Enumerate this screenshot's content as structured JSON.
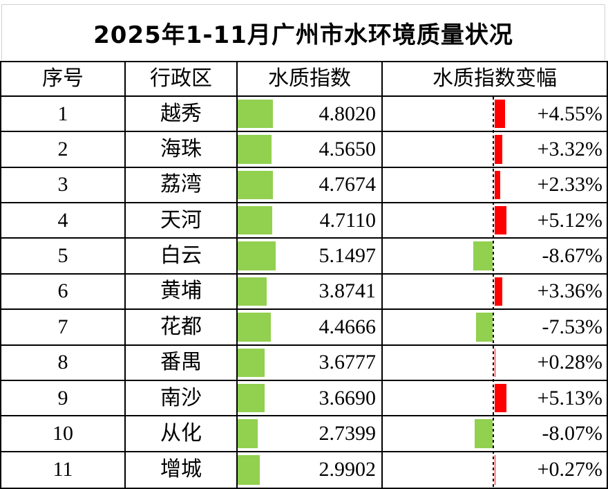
{
  "title": "2025年1-11月广州市水环境质量状况",
  "table": {
    "headers": [
      "序号",
      "行政区",
      "水质指数",
      "水质指数变幅"
    ],
    "rows": [
      {
        "no": "1",
        "district": "越秀",
        "index_label": "4.8020",
        "index_value": 4.802,
        "change_label": "+4.55%",
        "change_value": 4.55
      },
      {
        "no": "2",
        "district": "海珠",
        "index_label": "4.5650",
        "index_value": 4.565,
        "change_label": "+3.32%",
        "change_value": 3.32
      },
      {
        "no": "3",
        "district": "荔湾",
        "index_label": "4.7674",
        "index_value": 4.7674,
        "change_label": "+2.33%",
        "change_value": 2.33
      },
      {
        "no": "4",
        "district": "天河",
        "index_label": "4.7110",
        "index_value": 4.711,
        "change_label": "+5.12%",
        "change_value": 5.12
      },
      {
        "no": "5",
        "district": "白云",
        "index_label": "5.1497",
        "index_value": 5.1497,
        "change_label": "-8.67%",
        "change_value": -8.67
      },
      {
        "no": "6",
        "district": "黄埔",
        "index_label": "3.8741",
        "index_value": 3.8741,
        "change_label": "+3.36%",
        "change_value": 3.36
      },
      {
        "no": "7",
        "district": "花都",
        "index_label": "4.4666",
        "index_value": 4.4666,
        "change_label": "-7.53%",
        "change_value": -7.53
      },
      {
        "no": "8",
        "district": "番禺",
        "index_label": "3.6777",
        "index_value": 3.6777,
        "change_label": "+0.28%",
        "change_value": 0.28
      },
      {
        "no": "9",
        "district": "南沙",
        "index_label": "3.6690",
        "index_value": 3.669,
        "change_label": "+5.13%",
        "change_value": 5.13
      },
      {
        "no": "10",
        "district": "从化",
        "index_label": "2.7399",
        "index_value": 2.7399,
        "change_label": "-8.07%",
        "change_value": -8.07
      },
      {
        "no": "11",
        "district": "增城",
        "index_label": "2.9902",
        "index_value": 2.9902,
        "change_label": "+0.27%",
        "change_value": 0.27
      }
    ]
  },
  "colors": {
    "index_bar": "#92d050",
    "positive_bar": "#ff0000",
    "negative_bar": "#92d050",
    "border": "#000000",
    "title_border": "#d0d0d0",
    "text": "#000000",
    "background": "#ffffff"
  },
  "chart_data": {
    "type": "table",
    "title": "2025年1-11月广州市水环境质量状况",
    "columns": [
      "序号",
      "行政区",
      "水质指数",
      "水质指数变幅"
    ],
    "categories": [
      "越秀",
      "海珠",
      "荔湾",
      "天河",
      "白云",
      "黄埔",
      "花都",
      "番禺",
      "南沙",
      "从化",
      "增城"
    ],
    "series": [
      {
        "name": "水质指数",
        "type": "bar",
        "color": "#92d050",
        "values": [
          4.802,
          4.565,
          4.7674,
          4.711,
          5.1497,
          3.8741,
          4.4666,
          3.6777,
          3.669,
          2.7399,
          2.9902
        ]
      },
      {
        "name": "水质指数变幅(%)",
        "type": "bar",
        "color_positive": "#ff0000",
        "color_negative": "#92d050",
        "values": [
          4.55,
          3.32,
          2.33,
          5.12,
          -8.67,
          3.36,
          -7.53,
          0.28,
          5.13,
          -8.07,
          0.27
        ]
      }
    ],
    "layout": {
      "zero_axis": "dashed-vertical-line",
      "bars_embedded_in_cells": true,
      "grid": "full-borders"
    }
  }
}
